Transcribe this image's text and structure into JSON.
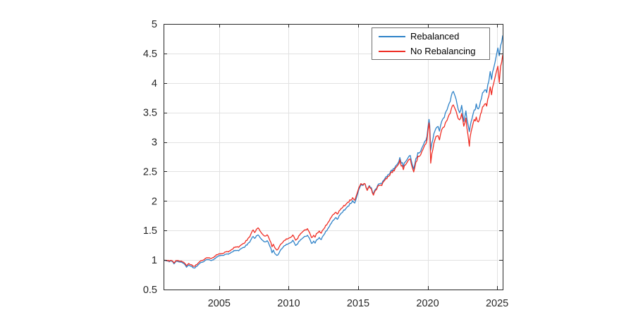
{
  "figure": {
    "background": "#ffffff",
    "axis_color": "#262626",
    "grid_color": "#e2e2e2",
    "tick_label_color": "#262626"
  },
  "chart_data": {
    "type": "line",
    "title": "",
    "xlabel": "",
    "ylabel": "",
    "grid": true,
    "xlim": [
      2001,
      2025.4
    ],
    "ylim": [
      0.5,
      5
    ],
    "x_ticks": [
      2005,
      2010,
      2015,
      2020,
      2025
    ],
    "x_tick_labels": [
      "2005",
      "2010",
      "2015",
      "2020",
      "2025"
    ],
    "y_ticks": [
      0.5,
      1,
      1.5,
      2,
      2.5,
      3,
      3.5,
      4,
      4.5,
      5
    ],
    "y_tick_labels": [
      "0.5",
      "1",
      "1.5",
      "2",
      "2.5",
      "3",
      "3.5",
      "4",
      "4.5",
      "5"
    ],
    "legend": {
      "position": "inside-top-right",
      "border_color": "#707070",
      "background": "#ffffff"
    },
    "x": [
      2001.0,
      2001.2,
      2001.4,
      2001.6,
      2001.75,
      2001.9,
      2002.1,
      2002.3,
      2002.5,
      2002.65,
      2002.8,
      2002.95,
      2003.1,
      2003.2,
      2003.4,
      2003.6,
      2003.8,
      2004.0,
      2004.2,
      2004.4,
      2004.6,
      2004.8,
      2005.0,
      2005.2,
      2005.4,
      2005.6,
      2005.8,
      2006.0,
      2006.2,
      2006.4,
      2006.55,
      2006.8,
      2007.0,
      2007.2,
      2007.45,
      2007.55,
      2007.8,
      2008.0,
      2008.15,
      2008.3,
      2008.45,
      2008.6,
      2008.72,
      2008.8,
      2008.9,
      2009.0,
      2009.15,
      2009.3,
      2009.5,
      2009.7,
      2009.9,
      2010.1,
      2010.3,
      2010.5,
      2010.65,
      2010.8,
      2011.0,
      2011.2,
      2011.35,
      2011.5,
      2011.65,
      2011.8,
      2011.9,
      2012.0,
      2012.2,
      2012.35,
      2012.6,
      2012.8,
      2013.0,
      2013.2,
      2013.4,
      2013.5,
      2013.7,
      2013.9,
      2014.1,
      2014.25,
      2014.4,
      2014.6,
      2014.75,
      2014.9,
      2015.05,
      2015.2,
      2015.35,
      2015.5,
      2015.65,
      2015.8,
      2015.95,
      2016.1,
      2016.25,
      2016.4,
      2016.55,
      2016.7,
      2016.85,
      2017.0,
      2017.2,
      2017.4,
      2017.6,
      2017.8,
      2018.0,
      2018.1,
      2018.25,
      2018.4,
      2018.6,
      2018.75,
      2018.9,
      2019.0,
      2019.15,
      2019.3,
      2019.5,
      2019.65,
      2019.8,
      2019.95,
      2020.1,
      2020.15,
      2020.22,
      2020.3,
      2020.45,
      2020.6,
      2020.75,
      2020.85,
      2021.0,
      2021.2,
      2021.4,
      2021.55,
      2021.7,
      2021.85,
      2021.95,
      2022.05,
      2022.2,
      2022.3,
      2022.45,
      2022.6,
      2022.75,
      2022.9,
      2023.0,
      2023.05,
      2023.2,
      2023.35,
      2023.5,
      2023.65,
      2023.8,
      2023.95,
      2024.1,
      2024.25,
      2024.4,
      2024.5,
      2024.6,
      2024.75,
      2024.85,
      2024.95,
      2025.05,
      2025.15,
      2025.25,
      2025.4
    ],
    "series": [
      {
        "name": "Rebalanced",
        "color": "#2e82c8",
        "values": [
          1.0,
          0.99,
          0.975,
          0.985,
          0.94,
          0.98,
          0.975,
          0.96,
          0.93,
          0.885,
          0.92,
          0.9,
          0.875,
          0.86,
          0.9,
          0.945,
          0.97,
          0.995,
          1.01,
          0.995,
          1.01,
          1.045,
          1.08,
          1.07,
          1.09,
          1.1,
          1.12,
          1.15,
          1.17,
          1.16,
          1.19,
          1.22,
          1.26,
          1.3,
          1.41,
          1.37,
          1.43,
          1.37,
          1.32,
          1.31,
          1.33,
          1.27,
          1.19,
          1.12,
          1.17,
          1.12,
          1.07,
          1.12,
          1.19,
          1.24,
          1.27,
          1.29,
          1.33,
          1.25,
          1.28,
          1.33,
          1.38,
          1.4,
          1.42,
          1.37,
          1.28,
          1.32,
          1.28,
          1.33,
          1.38,
          1.35,
          1.46,
          1.52,
          1.6,
          1.68,
          1.72,
          1.69,
          1.77,
          1.83,
          1.87,
          1.91,
          1.95,
          2.0,
          1.97,
          2.08,
          2.18,
          2.28,
          2.26,
          2.3,
          2.18,
          2.26,
          2.22,
          2.12,
          2.2,
          2.26,
          2.29,
          2.31,
          2.34,
          2.4,
          2.46,
          2.51,
          2.55,
          2.62,
          2.72,
          2.66,
          2.6,
          2.66,
          2.72,
          2.78,
          2.62,
          2.55,
          2.7,
          2.8,
          2.85,
          2.92,
          3.0,
          3.1,
          3.38,
          3.3,
          2.88,
          3.0,
          3.12,
          3.22,
          3.28,
          3.2,
          3.32,
          3.42,
          3.56,
          3.65,
          3.78,
          3.87,
          3.8,
          3.7,
          3.58,
          3.5,
          3.62,
          3.35,
          3.52,
          3.3,
          3.2,
          3.28,
          3.42,
          3.52,
          3.62,
          3.55,
          3.68,
          3.82,
          3.91,
          3.86,
          4.05,
          4.17,
          4.07,
          4.28,
          4.39,
          4.5,
          4.62,
          4.43,
          4.6,
          4.8
        ]
      },
      {
        "name": "No Rebalancing",
        "color": "#ef2d24",
        "values": [
          1.0,
          0.995,
          0.985,
          0.995,
          0.955,
          0.99,
          0.99,
          0.975,
          0.95,
          0.91,
          0.945,
          0.925,
          0.9,
          0.89,
          0.93,
          0.975,
          1.0,
          1.025,
          1.04,
          1.03,
          1.05,
          1.085,
          1.11,
          1.1,
          1.13,
          1.14,
          1.16,
          1.2,
          1.23,
          1.22,
          1.25,
          1.29,
          1.34,
          1.39,
          1.52,
          1.47,
          1.55,
          1.48,
          1.42,
          1.41,
          1.43,
          1.37,
          1.29,
          1.22,
          1.27,
          1.22,
          1.16,
          1.22,
          1.28,
          1.33,
          1.36,
          1.38,
          1.42,
          1.34,
          1.37,
          1.43,
          1.49,
          1.51,
          1.53,
          1.47,
          1.38,
          1.42,
          1.38,
          1.44,
          1.49,
          1.46,
          1.56,
          1.62,
          1.7,
          1.78,
          1.81,
          1.78,
          1.85,
          1.91,
          1.94,
          1.98,
          2.01,
          2.05,
          2.02,
          2.12,
          2.21,
          2.3,
          2.27,
          2.3,
          2.17,
          2.25,
          2.2,
          2.1,
          2.18,
          2.24,
          2.26,
          2.28,
          2.32,
          2.37,
          2.43,
          2.48,
          2.52,
          2.59,
          2.68,
          2.61,
          2.55,
          2.61,
          2.67,
          2.72,
          2.57,
          2.5,
          2.64,
          2.74,
          2.79,
          2.86,
          2.94,
          3.04,
          3.32,
          3.22,
          2.66,
          2.82,
          2.96,
          3.08,
          3.12,
          3.05,
          3.18,
          3.26,
          3.38,
          3.46,
          3.56,
          3.64,
          3.58,
          3.5,
          3.42,
          3.38,
          3.48,
          3.27,
          3.4,
          3.12,
          2.95,
          3.1,
          3.26,
          3.36,
          3.4,
          3.33,
          3.46,
          3.58,
          3.67,
          3.63,
          3.8,
          3.91,
          3.81,
          4.02,
          4.13,
          4.22,
          4.31,
          3.98,
          4.25,
          4.47
        ]
      }
    ]
  }
}
